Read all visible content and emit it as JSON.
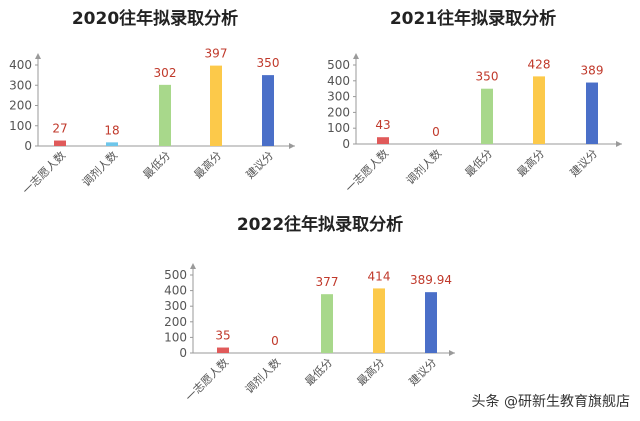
{
  "chart_data": [
    {
      "type": "bar",
      "title": "2020往年拟录取分析",
      "categories": [
        "一志愿人数",
        "调剂人数",
        "最低分",
        "最高分",
        "建议分"
      ],
      "values": [
        27,
        18,
        302,
        397,
        350
      ],
      "value_labels": [
        "27",
        "18",
        "302",
        "397",
        "350"
      ],
      "colors": [
        "#e05a5a",
        "#6ec6ea",
        "#a8d88b",
        "#fcc94a",
        "#4a6fc8"
      ],
      "ylim": [
        0,
        400
      ],
      "yticks": [
        "0",
        "100",
        "200",
        "300",
        "400"
      ],
      "grid": false
    },
    {
      "type": "bar",
      "title": "2021往年拟录取分析",
      "categories": [
        "一志愿人数",
        "调剂人数",
        "最低分",
        "最高分",
        "建议分"
      ],
      "values": [
        43,
        0,
        350,
        428,
        389
      ],
      "value_labels": [
        "43",
        "0",
        "350",
        "428",
        "389"
      ],
      "colors": [
        "#e05a5a",
        "#6ec6ea",
        "#a8d88b",
        "#fcc94a",
        "#4a6fc8"
      ],
      "ylim": [
        0,
        500
      ],
      "yticks": [
        "0",
        "100",
        "200",
        "300",
        "400",
        "500"
      ],
      "grid": false
    },
    {
      "type": "bar",
      "title": "2022往年拟录取分析",
      "categories": [
        "一志愿人数",
        "调剂人数",
        "最低分",
        "最高分",
        "建议分"
      ],
      "values": [
        35,
        0,
        377,
        414,
        389.94
      ],
      "value_labels": [
        "35",
        "0",
        "377",
        "414",
        "389.94"
      ],
      "colors": [
        "#e05a5a",
        "#6ec6ea",
        "#a8d88b",
        "#fcc94a",
        "#4a6fc8"
      ],
      "ylim": [
        0,
        500
      ],
      "yticks": [
        "0",
        "100",
        "200",
        "300",
        "400",
        "500"
      ],
      "grid": false
    }
  ],
  "watermark": "头条 @研新生教育旗舰店"
}
